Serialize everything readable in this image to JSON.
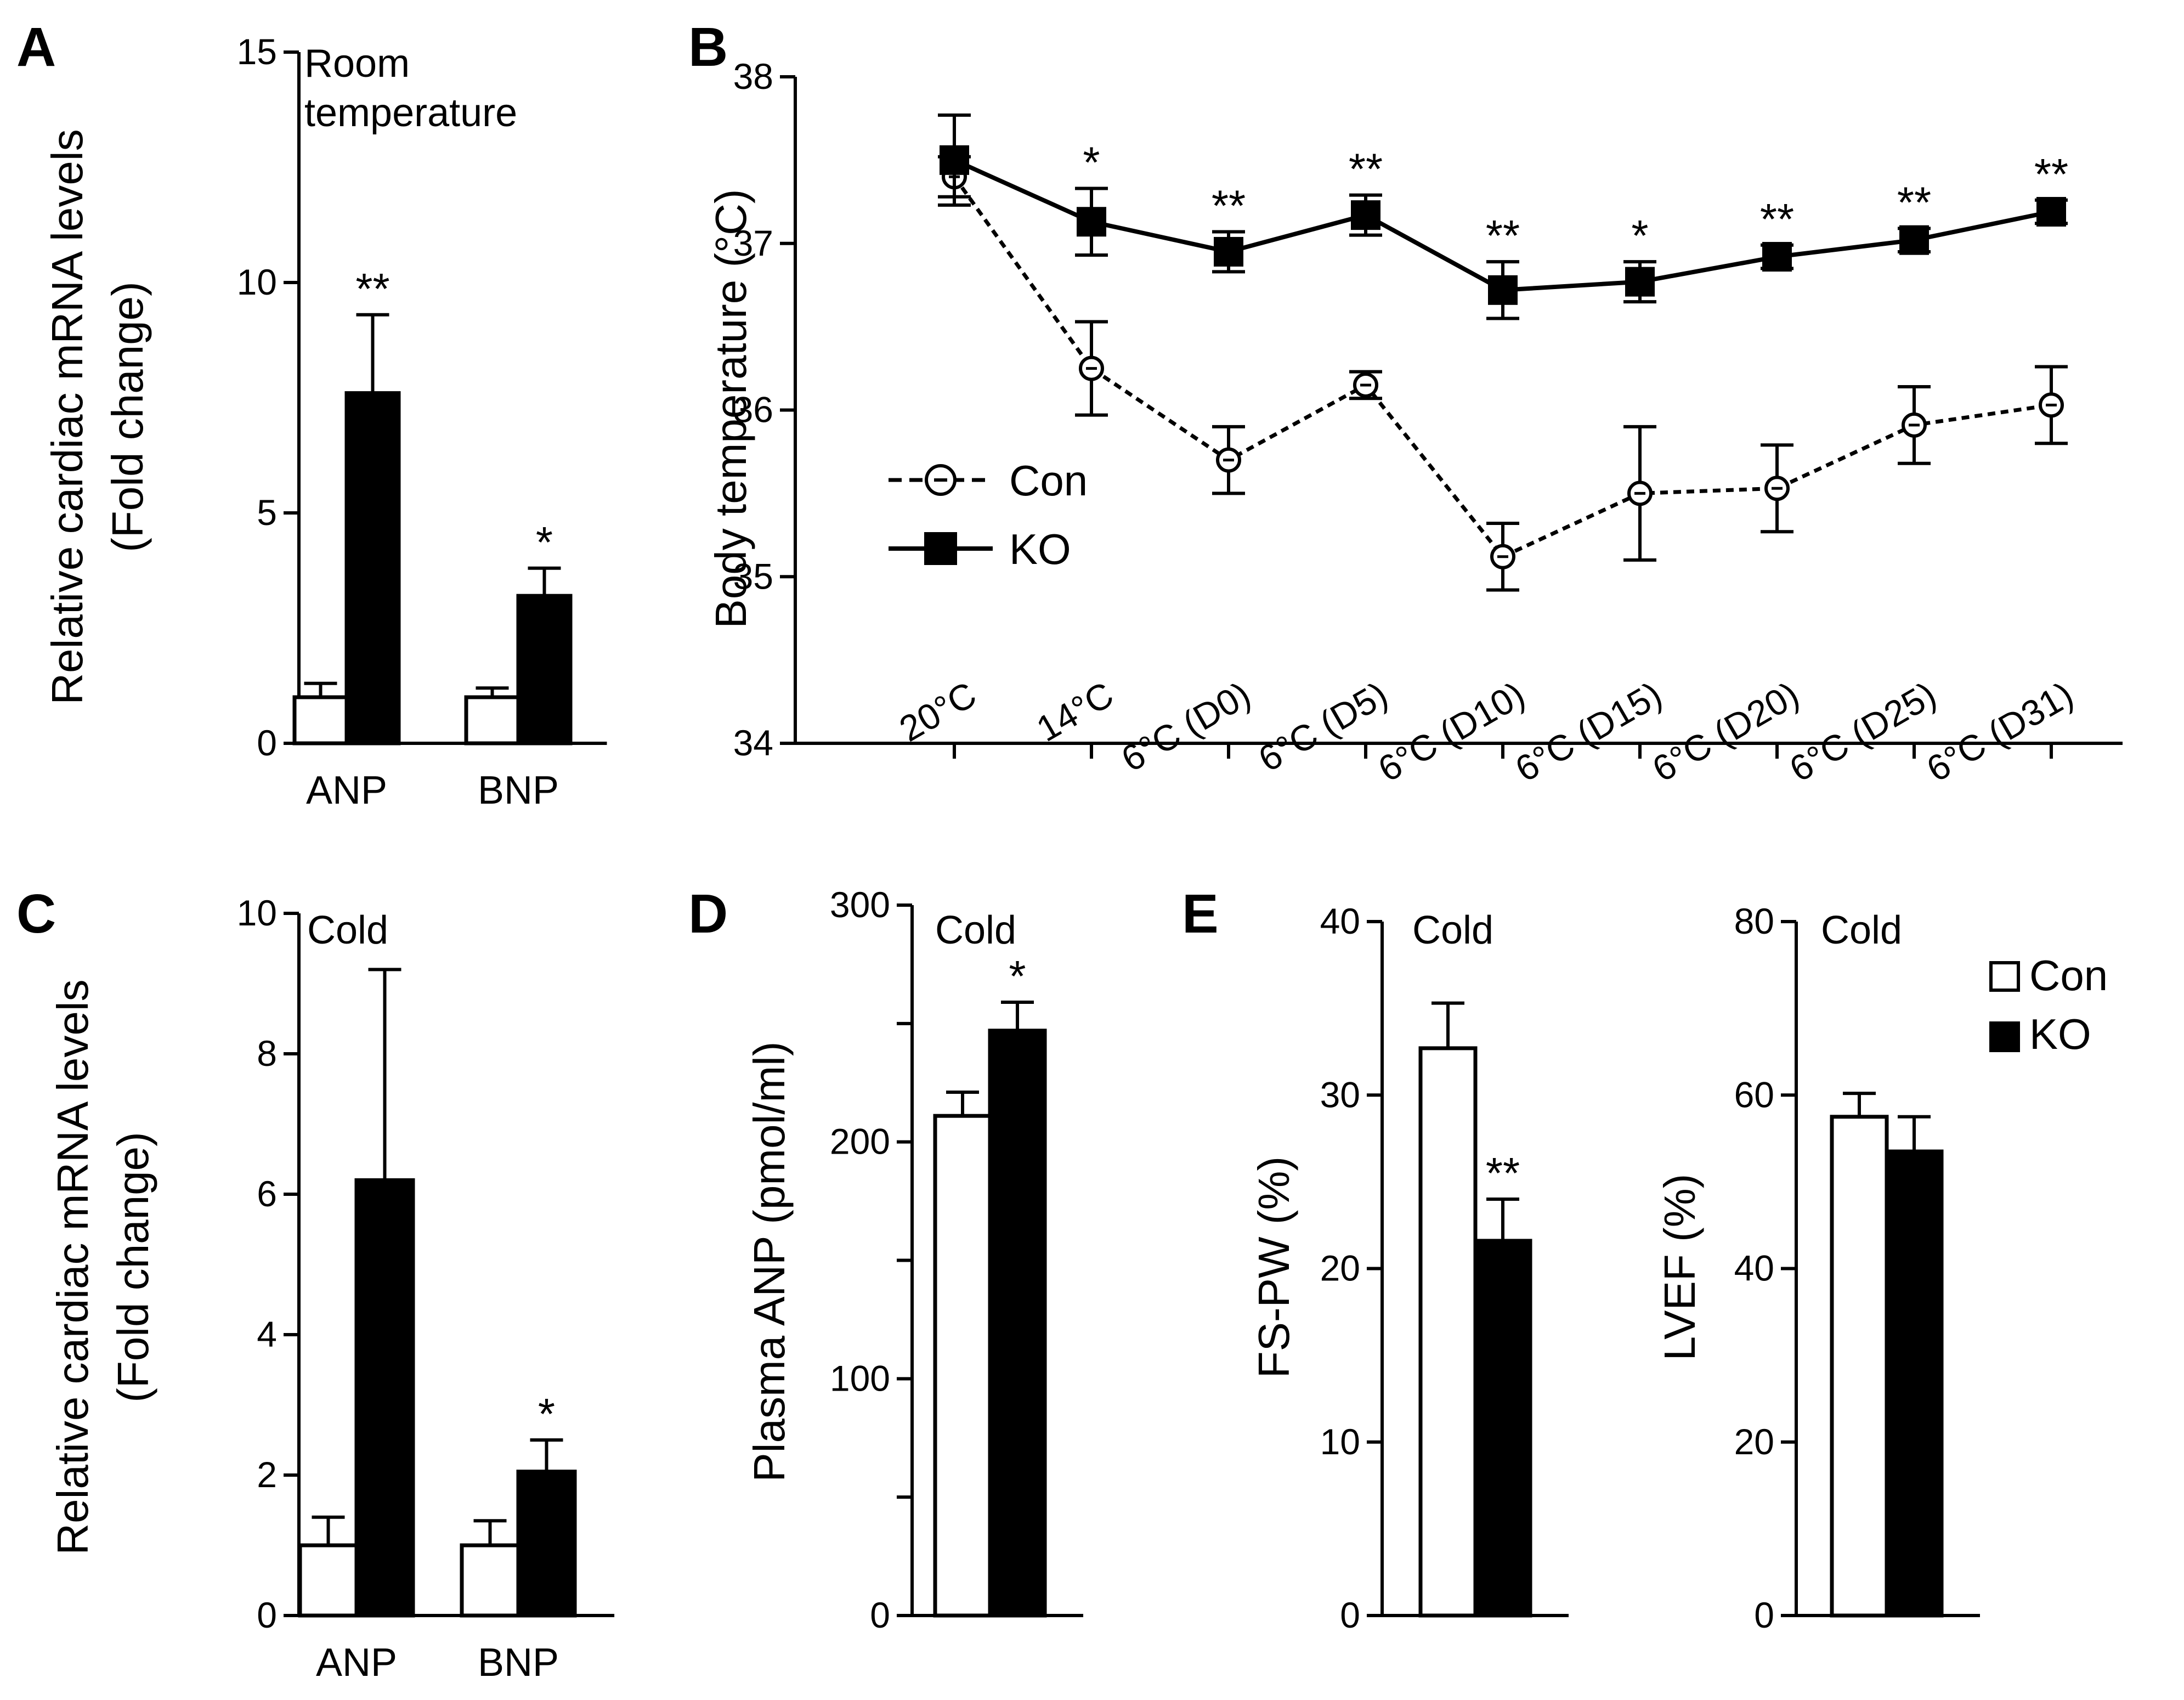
{
  "colors": {
    "con": "#ffffff",
    "ko": "#000000",
    "axis": "#000000"
  },
  "legend": {
    "con": "Con",
    "ko": "KO"
  },
  "chart_data": [
    {
      "panel": "A",
      "type": "bar",
      "inset": [
        "Room",
        "temperature"
      ],
      "ylabel": [
        "Relative cardiac mRNA levels",
        "(Fold change)"
      ],
      "ylim": [
        0,
        15
      ],
      "yticks": [
        "0",
        "5",
        "10",
        "15"
      ],
      "categories": [
        "ANP",
        "BNP"
      ],
      "series": [
        {
          "name": "Con",
          "values": [
            1.0,
            1.0
          ],
          "errors": [
            0.3,
            0.2
          ]
        },
        {
          "name": "KO",
          "values": [
            7.6,
            3.2
          ],
          "errors": [
            1.7,
            0.6
          ]
        }
      ],
      "significance": [
        "**",
        "*"
      ]
    },
    {
      "panel": "B",
      "type": "line",
      "ylabel": "Body temperature (°C)",
      "ylim": [
        34,
        38
      ],
      "yticks": [
        "34",
        "35",
        "36",
        "37",
        "38"
      ],
      "categories": [
        "20°C",
        "14°C",
        "6°C (D0)",
        "6°C (D5)",
        "6°C (D10)",
        "6°C (D15)",
        "6°C (D20)",
        "6°C (D25)",
        "6°C (D31)"
      ],
      "series": [
        {
          "name": "Con",
          "values": [
            37.4,
            36.25,
            35.7,
            36.15,
            35.12,
            35.5,
            35.53,
            35.91,
            36.03
          ],
          "errors": [
            0.12,
            0.28,
            0.2,
            0.08,
            0.2,
            0.4,
            0.26,
            0.23,
            0.23
          ]
        },
        {
          "name": "KO",
          "values": [
            37.5,
            37.13,
            36.95,
            37.17,
            36.72,
            36.77,
            36.92,
            37.02,
            37.19
          ],
          "errors": [
            0.27,
            0.2,
            0.12,
            0.12,
            0.17,
            0.12,
            0.07,
            0.07,
            0.07
          ]
        }
      ],
      "significance": [
        "",
        "*",
        "**",
        "**",
        "**",
        "*",
        "**",
        "**",
        "**"
      ],
      "legend_position": "middle-left"
    },
    {
      "panel": "C",
      "type": "bar",
      "inset": [
        "Cold"
      ],
      "ylabel": [
        "Relative cardiac mRNA levels",
        "(Fold change)"
      ],
      "ylim": [
        0,
        10
      ],
      "yticks": [
        "0",
        "2",
        "4",
        "6",
        "8",
        "10"
      ],
      "categories": [
        "ANP",
        "BNP"
      ],
      "series": [
        {
          "name": "Con",
          "values": [
            1.0,
            1.0
          ],
          "errors": [
            0.4,
            0.35
          ]
        },
        {
          "name": "KO",
          "values": [
            6.2,
            2.05
          ],
          "errors": [
            3.0,
            0.45
          ]
        }
      ],
      "significance": [
        "",
        "*"
      ]
    },
    {
      "panel": "D",
      "type": "bar",
      "inset": [
        "Cold"
      ],
      "ylabel": [
        "Plasma ANP (pmol/ml)"
      ],
      "ylim": [
        0,
        300
      ],
      "yticks": [
        "0",
        "100",
        "200",
        "300"
      ],
      "categories": [
        ""
      ],
      "series": [
        {
          "name": "Con",
          "values": [
            211
          ],
          "errors": [
            10
          ]
        },
        {
          "name": "KO",
          "values": [
            247
          ],
          "errors": [
            12
          ]
        }
      ],
      "significance": [
        "*"
      ]
    },
    {
      "panel": "E",
      "type": "bar",
      "inset": [
        "Cold"
      ],
      "ylabel": [
        "FS-PW (%)"
      ],
      "ylim": [
        0,
        40
      ],
      "yticks": [
        "0",
        "10",
        "20",
        "30",
        "40"
      ],
      "categories": [
        ""
      ],
      "series": [
        {
          "name": "Con",
          "values": [
            32.7
          ],
          "errors": [
            2.6
          ]
        },
        {
          "name": "KO",
          "values": [
            21.6
          ],
          "errors": [
            2.4
          ]
        }
      ],
      "significance": [
        "**"
      ]
    },
    {
      "panel": "",
      "type": "bar",
      "inset": [
        "Cold"
      ],
      "ylabel": [
        "LVEF (%)"
      ],
      "ylim": [
        0,
        80
      ],
      "yticks": [
        "0",
        "20",
        "40",
        "60",
        "80"
      ],
      "categories": [
        ""
      ],
      "series": [
        {
          "name": "Con",
          "values": [
            57.5
          ],
          "errors": [
            2.7
          ]
        },
        {
          "name": "KO",
          "values": [
            53.5
          ],
          "errors": [
            4.0
          ]
        }
      ],
      "significance": [
        ""
      ],
      "legend_position": "top-right"
    }
  ]
}
